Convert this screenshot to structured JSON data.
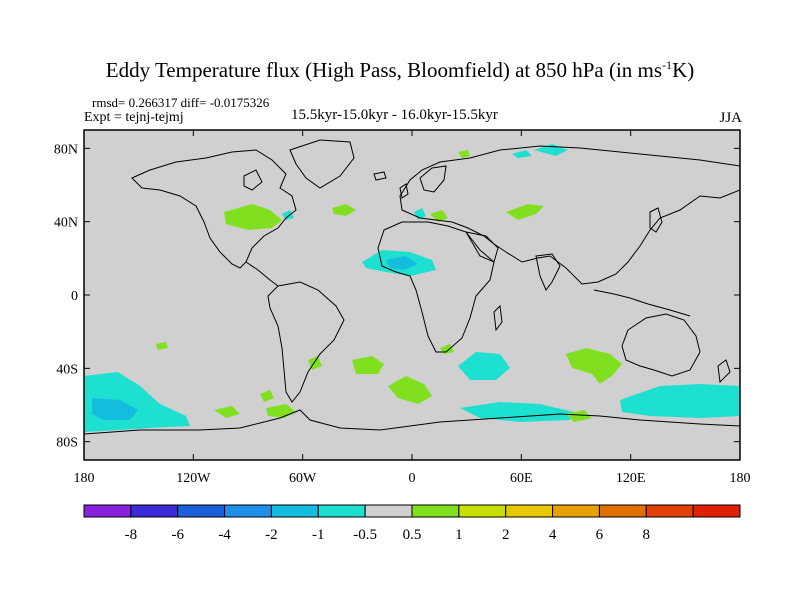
{
  "title": "Eddy Temperature flux (High Pass, Bloomfield) at 850 hPa (in ms",
  "title_sup": "-1",
  "title_end": "K)",
  "stats": "rmsd= 0.266317  diff= -0.0175326",
  "expt": "Expt = tejnj-tejmj",
  "period": "15.5kyr-15.0kyr - 16.0kyr-15.5kyr",
  "season": "JJA",
  "lat_ticks": [
    {
      "label": "80N",
      "lat": 80
    },
    {
      "label": "40N",
      "lat": 40
    },
    {
      "label": "0",
      "lat": 0
    },
    {
      "label": "40S",
      "lat": -40
    },
    {
      "label": "80S",
      "lat": -80
    }
  ],
  "lon_ticks": [
    {
      "label": "180",
      "lon": -180
    },
    {
      "label": "120W",
      "lon": -120
    },
    {
      "label": "60W",
      "lon": -60
    },
    {
      "label": "0",
      "lon": 0
    },
    {
      "label": "60E",
      "lon": 60
    },
    {
      "label": "120E",
      "lon": 120
    },
    {
      "label": "180",
      "lon": 180
    }
  ],
  "colorbar": {
    "colors": [
      "#8a20e0",
      "#3a2ad8",
      "#1a60d8",
      "#1e90e8",
      "#14bce0",
      "#1ee0d0",
      "#d0d0d0",
      "#80e020",
      "#c8e000",
      "#e8c800",
      "#e8a000",
      "#e07000",
      "#e04000",
      "#e02000"
    ],
    "labels": [
      "-8",
      "-6",
      "-4",
      "-2",
      "-1",
      "-0.5",
      "0.5",
      "1",
      "2",
      "4",
      "6",
      "8"
    ]
  },
  "colors": {
    "background": "#d0d0d0",
    "coast": "#000000",
    "neg_light": "#1ee0d0",
    "neg_mid": "#14bce0",
    "pos_light": "#80e020"
  }
}
